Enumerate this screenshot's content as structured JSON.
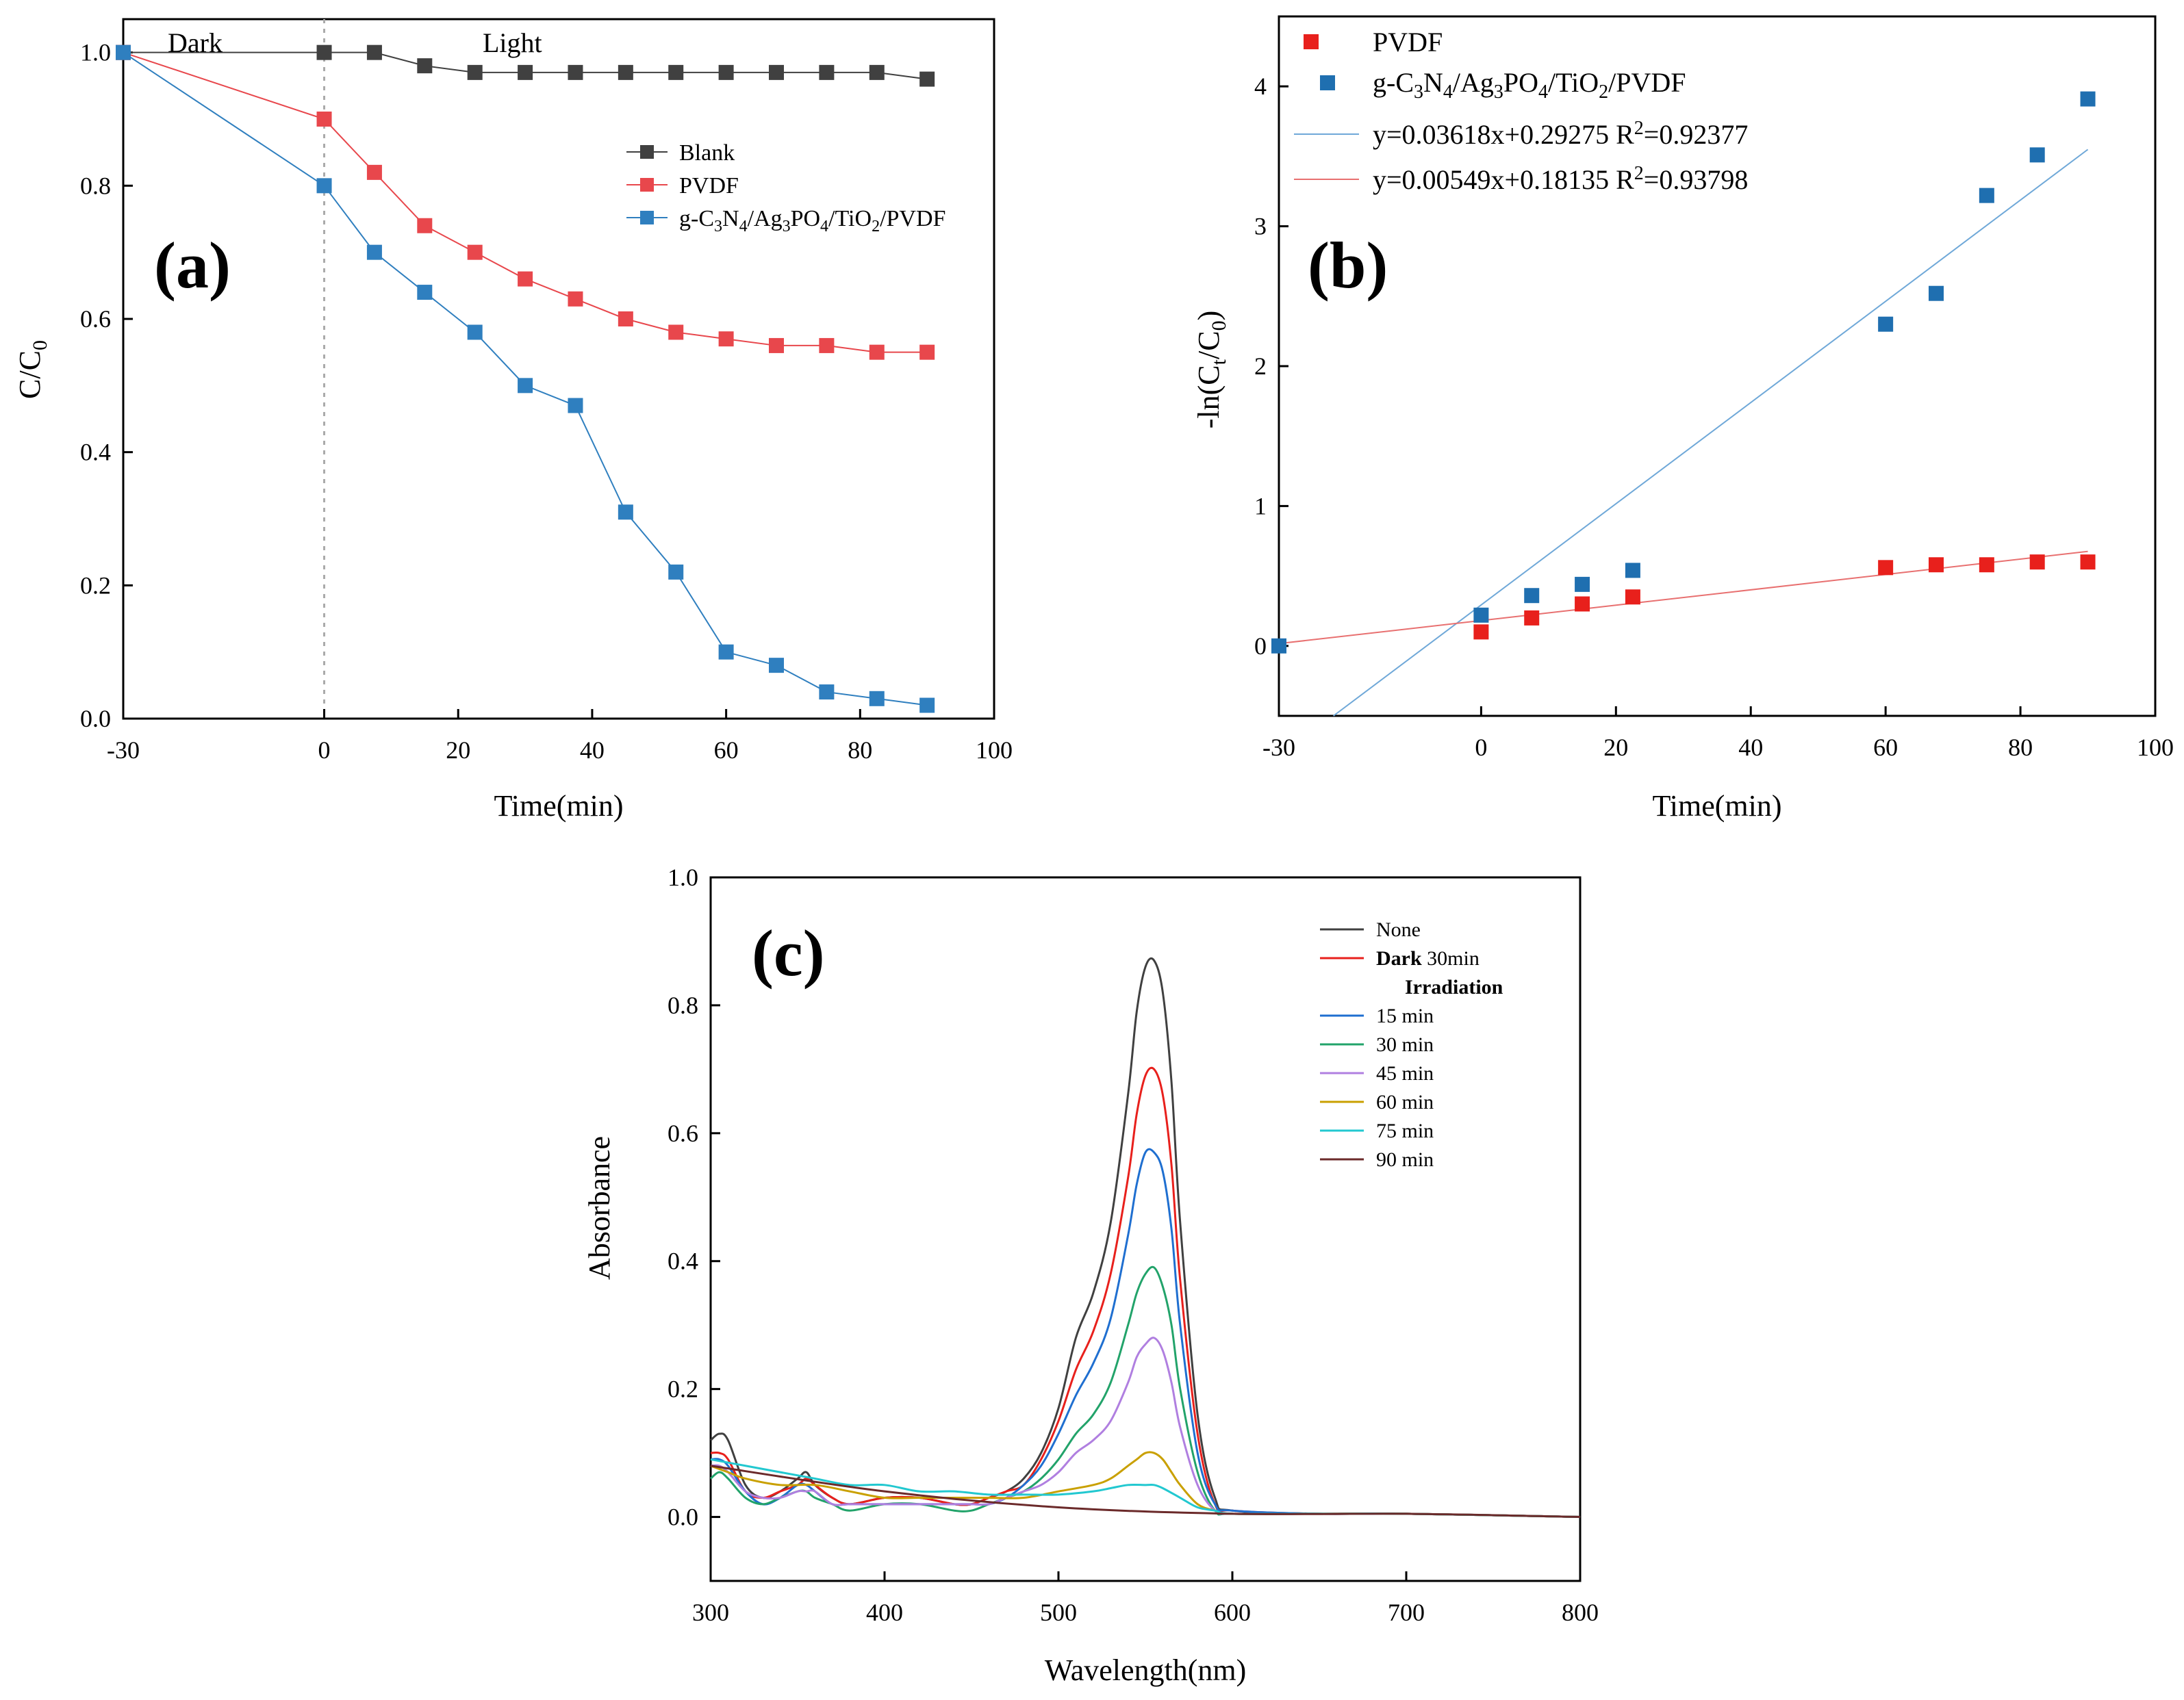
{
  "figure": {
    "panels": [
      "(a)",
      "(b)",
      "(c)"
    ]
  },
  "chart_data": [
    {
      "panel": "(a)",
      "type": "line",
      "xlabel": "Time(min)",
      "ylabel": "C/C0",
      "ylabel_main": "C/C",
      "ylabel_sub": "0",
      "xlim": [
        -30,
        100
      ],
      "ylim": [
        0,
        1.05
      ],
      "xticks": [
        -30,
        0,
        20,
        40,
        60,
        80,
        100
      ],
      "xtick_labels": [
        "-30",
        "0",
        "20",
        "40",
        "60",
        "80",
        "100"
      ],
      "yticks": [
        0,
        0.2,
        0.4,
        0.6,
        0.8,
        1.0
      ],
      "ytick_labels": [
        "0.0",
        "0.2",
        "0.4",
        "0.6",
        "0.8",
        "1.0"
      ],
      "annotations": [
        "Dark",
        "Light"
      ],
      "divider_x": 0,
      "series": [
        {
          "name": "Blank",
          "color": "#404040",
          "x": [
            -30,
            0,
            7.5,
            15,
            22.5,
            30,
            37.5,
            45,
            52.5,
            60,
            67.5,
            75,
            82.5,
            90
          ],
          "y": [
            1.0,
            1.0,
            1.0,
            0.98,
            0.97,
            0.97,
            0.97,
            0.97,
            0.97,
            0.97,
            0.97,
            0.97,
            0.97,
            0.96
          ]
        },
        {
          "name": "PVDF",
          "color": "#e8474c",
          "x": [
            -30,
            0,
            7.5,
            15,
            22.5,
            30,
            37.5,
            45,
            52.5,
            60,
            67.5,
            75,
            82.5,
            90
          ],
          "y": [
            1.0,
            0.9,
            0.82,
            0.74,
            0.7,
            0.66,
            0.63,
            0.6,
            0.58,
            0.57,
            0.56,
            0.56,
            0.55,
            0.55
          ]
        },
        {
          "name": "g-C3N4/Ag3PO4/TiO2/PVDF",
          "color": "#2f7fbf",
          "x": [
            -30,
            0,
            7.5,
            15,
            22.5,
            30,
            37.5,
            45,
            52.5,
            60,
            67.5,
            75,
            82.5,
            90
          ],
          "y": [
            1.0,
            0.8,
            0.7,
            0.64,
            0.58,
            0.5,
            0.47,
            0.31,
            0.22,
            0.1,
            0.08,
            0.04,
            0.03,
            0.02
          ]
        }
      ],
      "legend_labels": {
        "blank": "Blank",
        "pvdf": "PVDF",
        "comp_parts": [
          "g-C",
          "3",
          "N",
          "4",
          "/Ag",
          "3",
          "PO",
          "4",
          "/TiO",
          "2",
          "/PVDF"
        ]
      }
    },
    {
      "panel": "(b)",
      "type": "scatter",
      "xlabel": "Time(min)",
      "ylabel": "-ln(Ct/C0)",
      "ylabel_parts": [
        "-ln(C",
        "t",
        "/C",
        "0",
        ")"
      ],
      "xlim": [
        -30,
        100
      ],
      "ylim": [
        -0.5,
        4.5
      ],
      "xticks": [
        -30,
        0,
        20,
        40,
        60,
        80,
        100
      ],
      "xtick_labels": [
        "-30",
        "0",
        "20",
        "40",
        "60",
        "80",
        "100"
      ],
      "yticks": [
        0,
        1,
        2,
        3,
        4
      ],
      "ytick_labels": [
        "0",
        "1",
        "2",
        "3",
        "4"
      ],
      "series": [
        {
          "name": "PVDF",
          "color": "#e8201c",
          "x": [
            0,
            7.5,
            15,
            22.5,
            60,
            67.5,
            75,
            82.5,
            90
          ],
          "y": [
            0.1,
            0.2,
            0.3,
            0.35,
            0.56,
            0.58,
            0.58,
            0.6,
            0.6
          ]
        },
        {
          "name": "g-C3N4/Ag3PO4/TiO2/PVDF",
          "color": "#1f6fb0",
          "x": [
            -30,
            0,
            7.5,
            15,
            22.5,
            60,
            67.5,
            75,
            82.5,
            90
          ],
          "y": [
            0.0,
            0.22,
            0.36,
            0.44,
            0.54,
            2.3,
            2.52,
            3.22,
            3.51,
            3.91
          ]
        }
      ],
      "fits": [
        {
          "color": "#6fa8d8",
          "slope": 0.03618,
          "intercept": 0.29275,
          "x_range": [
            -30,
            90
          ],
          "label_main": "y=0.03618x+0.29275 R",
          "label_sup": "2",
          "label_tail": "=0.92377"
        },
        {
          "color": "#e87070",
          "slope": 0.00549,
          "intercept": 0.18135,
          "x_range": [
            -30,
            90
          ],
          "label_main": "y=0.00549x+0.18135 R",
          "label_sup": "2",
          "label_tail": "=0.93798"
        }
      ],
      "legend_labels": {
        "pvdf": "PVDF",
        "comp_parts": [
          "g-C",
          "3",
          "N",
          "4",
          "/Ag",
          "3",
          "PO",
          "4",
          "/TiO",
          "2",
          "/PVDF"
        ]
      }
    },
    {
      "panel": "(c)",
      "type": "line",
      "xlabel": "Wavelength(nm)",
      "ylabel": "Absorbance",
      "xlim": [
        300,
        800
      ],
      "ylim": [
        -0.1,
        1.0
      ],
      "xticks": [
        300,
        400,
        500,
        600,
        700,
        800
      ],
      "xtick_labels": [
        "300",
        "400",
        "500",
        "600",
        "700",
        "800"
      ],
      "yticks": [
        0,
        0.2,
        0.4,
        0.6,
        0.8,
        1.0
      ],
      "ytick_labels": [
        "0.0",
        "0.2",
        "0.4",
        "0.6",
        "0.8",
        "1.0"
      ],
      "legend": [
        {
          "label": "None",
          "bold": "",
          "rest": "None",
          "color": "#404040"
        },
        {
          "label": "Dark 30min",
          "bold": "Dark",
          "rest": " 30min",
          "color": "#e8201c"
        },
        {
          "label": "Irradiation",
          "heading": true
        },
        {
          "label": "15 min",
          "color": "#1f6fd0"
        },
        {
          "label": "30 min",
          "color": "#22a36a"
        },
        {
          "label": "45 min",
          "color": "#b07fe0"
        },
        {
          "label": "60 min",
          "color": "#c9a000"
        },
        {
          "label": "75 min",
          "color": "#22c8d0"
        },
        {
          "label": "90 min",
          "color": "#6b2a2a"
        }
      ],
      "series": [
        {
          "name": "None",
          "color": "#404040",
          "x": [
            300,
            305,
            310,
            320,
            330,
            340,
            350,
            355,
            360,
            370,
            380,
            400,
            420,
            440,
            450,
            460,
            470,
            480,
            490,
            500,
            510,
            520,
            530,
            540,
            545,
            550,
            555,
            560,
            565,
            570,
            580,
            590,
            600,
            650,
            700,
            800
          ],
          "y": [
            0.12,
            0.13,
            0.12,
            0.05,
            0.03,
            0.04,
            0.06,
            0.07,
            0.05,
            0.03,
            0.02,
            0.03,
            0.03,
            0.02,
            0.02,
            0.03,
            0.04,
            0.06,
            0.1,
            0.17,
            0.28,
            0.35,
            0.46,
            0.66,
            0.79,
            0.86,
            0.87,
            0.82,
            0.68,
            0.46,
            0.16,
            0.03,
            0.01,
            0.005,
            0.005,
            0.0
          ]
        },
        {
          "name": "Dark 30min",
          "color": "#e8201c",
          "x": [
            300,
            305,
            310,
            320,
            330,
            340,
            350,
            355,
            360,
            370,
            380,
            400,
            420,
            440,
            450,
            460,
            470,
            480,
            490,
            500,
            510,
            520,
            530,
            540,
            545,
            550,
            555,
            560,
            565,
            570,
            580,
            590,
            600,
            650,
            700,
            800
          ],
          "y": [
            0.1,
            0.1,
            0.09,
            0.04,
            0.03,
            0.04,
            0.05,
            0.06,
            0.05,
            0.03,
            0.02,
            0.03,
            0.03,
            0.02,
            0.02,
            0.03,
            0.04,
            0.05,
            0.09,
            0.15,
            0.23,
            0.29,
            0.38,
            0.53,
            0.63,
            0.69,
            0.7,
            0.66,
            0.55,
            0.37,
            0.13,
            0.02,
            0.01,
            0.005,
            0.005,
            0.0
          ]
        },
        {
          "name": "15 min",
          "color": "#1f6fd0",
          "x": [
            300,
            305,
            310,
            320,
            330,
            340,
            350,
            355,
            360,
            370,
            380,
            400,
            420,
            440,
            450,
            460,
            470,
            480,
            490,
            500,
            510,
            520,
            530,
            540,
            545,
            550,
            555,
            560,
            565,
            570,
            580,
            590,
            600,
            650,
            700,
            800
          ],
          "y": [
            0.09,
            0.09,
            0.08,
            0.04,
            0.02,
            0.03,
            0.05,
            0.05,
            0.04,
            0.02,
            0.02,
            0.02,
            0.02,
            0.02,
            0.02,
            0.02,
            0.03,
            0.05,
            0.08,
            0.13,
            0.19,
            0.24,
            0.31,
            0.44,
            0.52,
            0.57,
            0.57,
            0.54,
            0.45,
            0.3,
            0.1,
            0.02,
            0.01,
            0.005,
            0.005,
            0.0
          ]
        },
        {
          "name": "30 min",
          "color": "#22a36a",
          "x": [
            300,
            305,
            310,
            320,
            330,
            340,
            350,
            355,
            360,
            370,
            380,
            400,
            420,
            440,
            450,
            460,
            470,
            480,
            490,
            500,
            510,
            520,
            530,
            540,
            545,
            550,
            555,
            560,
            565,
            570,
            580,
            590,
            600,
            650,
            700,
            800
          ],
          "y": [
            0.06,
            0.07,
            0.06,
            0.03,
            0.02,
            0.03,
            0.04,
            0.04,
            0.03,
            0.02,
            0.01,
            0.02,
            0.02,
            0.01,
            0.01,
            0.02,
            0.03,
            0.04,
            0.06,
            0.09,
            0.13,
            0.16,
            0.21,
            0.3,
            0.35,
            0.38,
            0.39,
            0.36,
            0.3,
            0.2,
            0.07,
            0.01,
            0.005,
            0.005,
            0.005,
            0.0
          ]
        },
        {
          "name": "45 min",
          "color": "#b07fe0",
          "x": [
            300,
            305,
            310,
            320,
            330,
            340,
            350,
            355,
            360,
            370,
            380,
            400,
            420,
            440,
            450,
            460,
            470,
            480,
            490,
            500,
            510,
            520,
            530,
            540,
            545,
            550,
            555,
            560,
            565,
            570,
            580,
            590,
            600,
            650,
            700,
            800
          ],
          "y": [
            0.08,
            0.08,
            0.07,
            0.04,
            0.03,
            0.03,
            0.04,
            0.04,
            0.04,
            0.02,
            0.02,
            0.02,
            0.02,
            0.02,
            0.02,
            0.02,
            0.03,
            0.04,
            0.05,
            0.07,
            0.1,
            0.12,
            0.15,
            0.21,
            0.25,
            0.27,
            0.28,
            0.26,
            0.21,
            0.14,
            0.05,
            0.01,
            0.005,
            0.005,
            0.005,
            0.0
          ]
        },
        {
          "name": "60 min",
          "color": "#c9a000",
          "x": [
            300,
            310,
            320,
            340,
            360,
            380,
            400,
            420,
            440,
            460,
            480,
            500,
            520,
            530,
            540,
            545,
            550,
            555,
            560,
            565,
            570,
            580,
            590,
            600,
            650,
            700,
            800
          ],
          "y": [
            0.08,
            0.07,
            0.06,
            0.05,
            0.05,
            0.04,
            0.03,
            0.03,
            0.03,
            0.03,
            0.03,
            0.04,
            0.05,
            0.06,
            0.08,
            0.09,
            0.1,
            0.1,
            0.09,
            0.07,
            0.05,
            0.02,
            0.01,
            0.005,
            0.005,
            0.005,
            0.0
          ]
        },
        {
          "name": "75 min",
          "color": "#22c8d0",
          "x": [
            300,
            320,
            340,
            360,
            380,
            400,
            420,
            440,
            460,
            480,
            500,
            520,
            530,
            540,
            550,
            555,
            560,
            570,
            580,
            590,
            600,
            650,
            700,
            800
          ],
          "y": [
            0.09,
            0.08,
            0.07,
            0.06,
            0.05,
            0.05,
            0.04,
            0.04,
            0.035,
            0.035,
            0.035,
            0.04,
            0.045,
            0.05,
            0.05,
            0.05,
            0.045,
            0.03,
            0.015,
            0.01,
            0.005,
            0.005,
            0.005,
            0.0
          ]
        },
        {
          "name": "90 min",
          "color": "#6b2a2a",
          "x": [
            300,
            400,
            500,
            600,
            700,
            800
          ],
          "y": [
            0.08,
            0.04,
            0.015,
            0.005,
            0.005,
            0.0
          ]
        }
      ]
    }
  ]
}
